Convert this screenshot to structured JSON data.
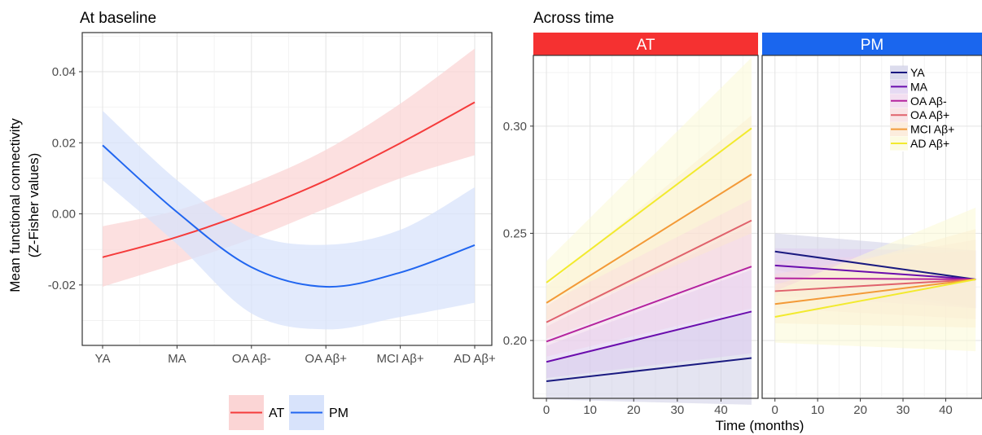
{
  "chart_data": [
    {
      "type": "line",
      "title": "At baseline",
      "xlabel": "",
      "ylabel": "Mean functional connectivity",
      "ylabel2": "(Z-Fisher values)",
      "categories": [
        "YA",
        "MA",
        "OA Aβ-",
        "OA Aβ+",
        "MCI Aβ+",
        "AD Aβ+"
      ],
      "yticks": [
        "-0.02",
        "0.00",
        "0.02",
        "0.04"
      ],
      "ylim": [
        -0.037,
        0.051
      ],
      "grid": true,
      "legend": "bottom",
      "series": [
        {
          "name": "AT",
          "color": "#f53b3b",
          "fill": "#fbd5d5",
          "values": [
            -0.0122,
            -0.0065,
            0.0007,
            0.0094,
            0.0199,
            0.0314
          ],
          "lower": [
            -0.0205,
            -0.014,
            -0.007,
            0.0015,
            0.01,
            0.0165
          ],
          "upper": [
            -0.0035,
            0.001,
            0.0085,
            0.018,
            0.031,
            0.0465
          ]
        },
        {
          "name": "PM",
          "color": "#2166f0",
          "fill": "#d8e3fb",
          "values": [
            0.0193,
            0.0005,
            -0.015,
            -0.0205,
            -0.0165,
            -0.0088
          ],
          "lower": [
            0.0095,
            -0.0085,
            -0.028,
            -0.0325,
            -0.029,
            -0.025
          ],
          "upper": [
            0.029,
            0.0095,
            -0.0055,
            -0.0087,
            -0.0045,
            0.0075
          ]
        }
      ]
    },
    {
      "type": "line",
      "title": "Across time",
      "xlabel": "Time (months)",
      "ylabel": "",
      "xlim": [
        -3,
        48.5
      ],
      "ylim": [
        0.173,
        0.333
      ],
      "xticks": [
        "0",
        "10",
        "20",
        "30",
        "40"
      ],
      "yticks": [
        "0.20",
        "0.25",
        "0.30"
      ],
      "grid": true,
      "legend": "top-right",
      "facets": [
        {
          "label": "AT",
          "strip_color": "#f53131",
          "series": [
            {
              "name": "YA",
              "color": "#1a1a80",
              "fill": "#cdcde6",
              "x": [
                0,
                47
              ],
              "values": [
                0.181,
                0.1918
              ],
              "lower": [
                0.1725,
                0.17
              ],
              "upper": [
                0.1895,
                0.2135
              ]
            },
            {
              "name": "MA",
              "color": "#6a0dad",
              "fill": "#dccaee",
              "x": [
                0,
                47
              ],
              "values": [
                0.19,
                0.2135
              ],
              "lower": [
                0.1825,
                0.194
              ],
              "upper": [
                0.1975,
                0.233
              ]
            },
            {
              "name": "OA Aβ-",
              "color": "#b5249e",
              "fill": "#eed2ea",
              "x": [
                0,
                47
              ],
              "values": [
                0.1995,
                0.2345
              ],
              "lower": [
                0.1925,
                0.215
              ],
              "upper": [
                0.2065,
                0.254
              ]
            },
            {
              "name": "OA Aβ+",
              "color": "#e0626c",
              "fill": "#f6d8db",
              "x": [
                0,
                47
              ],
              "values": [
                0.2085,
                0.256
              ],
              "lower": [
                0.201,
                0.235
              ],
              "upper": [
                0.216,
                0.277
              ]
            },
            {
              "name": "MCI Aβ+",
              "color": "#f39a38",
              "fill": "#fbe6cf",
              "x": [
                0,
                47
              ],
              "values": [
                0.2175,
                0.2775
              ],
              "lower": [
                0.2095,
                0.25
              ],
              "upper": [
                0.2255,
                0.305
              ]
            },
            {
              "name": "AD Aβ+",
              "color": "#f2ea2e",
              "fill": "#fbf9d5",
              "x": [
                0,
                47
              ],
              "values": [
                0.227,
                0.299
              ],
              "lower": [
                0.217,
                0.266
              ],
              "upper": [
                0.237,
                0.332
              ]
            }
          ]
        },
        {
          "label": "PM",
          "strip_color": "#1a66ee",
          "series": [
            {
              "name": "YA",
              "color": "#1a1a80",
              "fill": "#cdcde6",
              "x": [
                0,
                47
              ],
              "values": [
                0.2415,
                0.2285
              ],
              "lower": [
                0.233,
                0.215
              ],
              "upper": [
                0.25,
                0.242
              ]
            },
            {
              "name": "MA",
              "color": "#6a0dad",
              "fill": "#dccaee",
              "x": [
                0,
                47
              ],
              "values": [
                0.235,
                0.2285
              ],
              "lower": [
                0.227,
                0.215
              ],
              "upper": [
                0.243,
                0.242
              ]
            },
            {
              "name": "OA Aβ-",
              "color": "#b5249e",
              "fill": "#eed2ea",
              "x": [
                0,
                47
              ],
              "values": [
                0.229,
                0.2285
              ],
              "lower": [
                0.221,
                0.215
              ],
              "upper": [
                0.237,
                0.242
              ]
            },
            {
              "name": "OA Aβ+",
              "color": "#e0626c",
              "fill": "#f6d8db",
              "x": [
                0,
                47
              ],
              "values": [
                0.223,
                0.2285
              ],
              "lower": [
                0.215,
                0.21
              ],
              "upper": [
                0.231,
                0.247
              ]
            },
            {
              "name": "MCI Aβ+",
              "color": "#f39a38",
              "fill": "#fbe6cf",
              "x": [
                0,
                47
              ],
              "values": [
                0.217,
                0.2285
              ],
              "lower": [
                0.208,
                0.206
              ],
              "upper": [
                0.226,
                0.252
              ]
            },
            {
              "name": "AD Aβ+",
              "color": "#f2ea2e",
              "fill": "#fbf9d5",
              "x": [
                0,
                47
              ],
              "values": [
                0.211,
                0.2285
              ],
              "lower": [
                0.199,
                0.195
              ],
              "upper": [
                0.223,
                0.262
              ]
            }
          ]
        }
      ]
    }
  ]
}
